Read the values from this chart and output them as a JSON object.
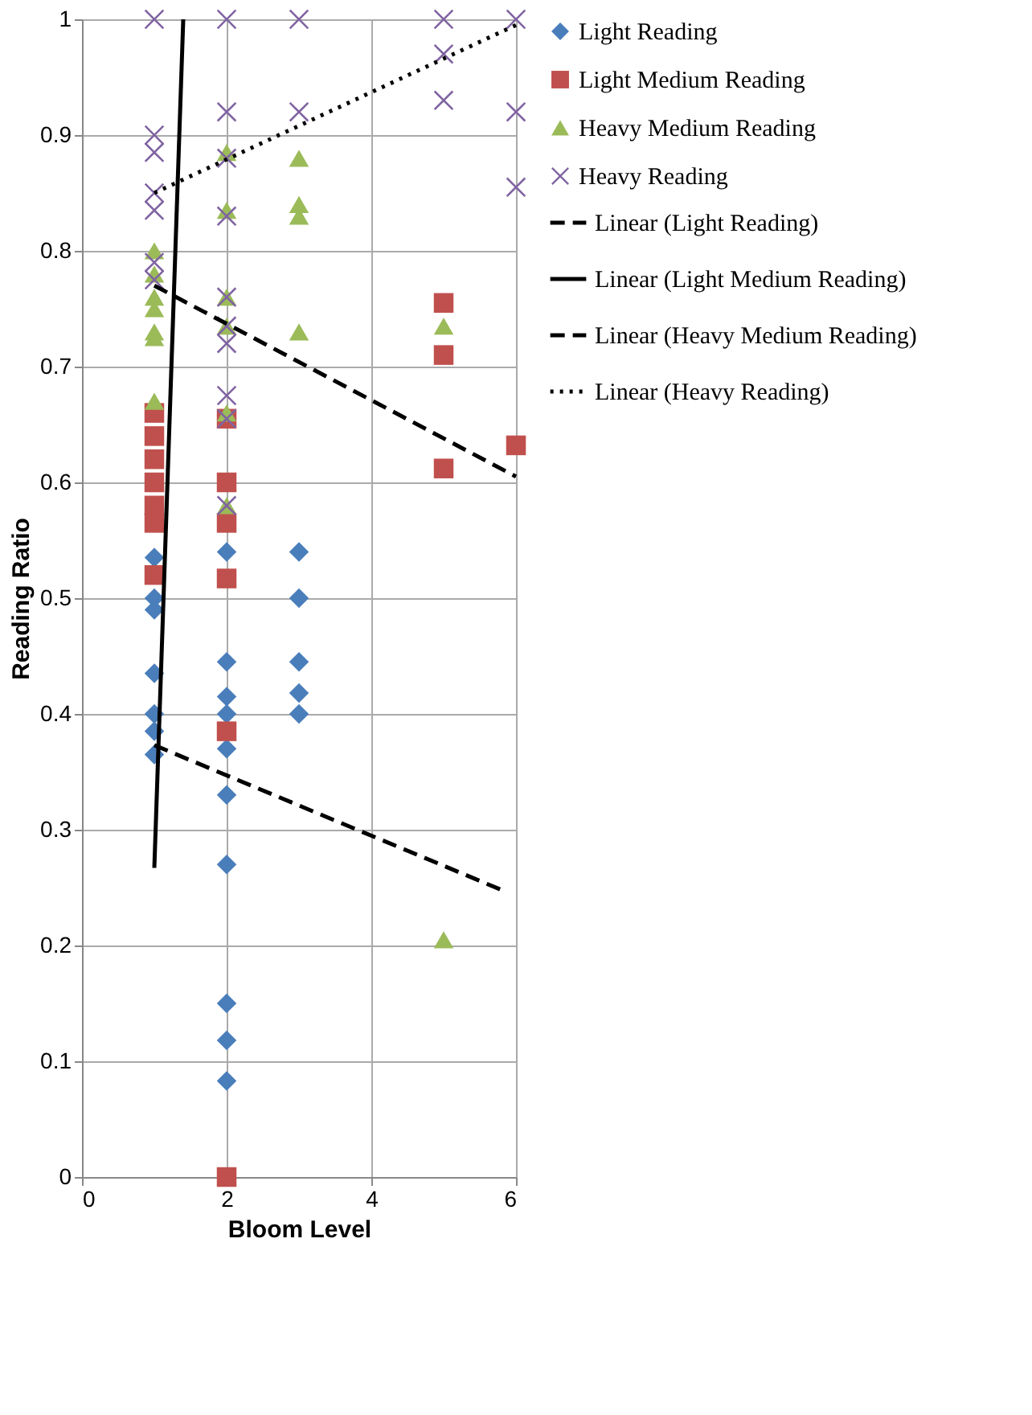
{
  "chart_data": {
    "type": "scatter",
    "xlabel": "Bloom Level",
    "ylabel": "Reading Ratio",
    "xlim": [
      0,
      6
    ],
    "xticks": [
      0,
      2,
      4,
      6
    ],
    "ylim": [
      0,
      1
    ],
    "yticks": [
      0,
      0.1,
      0.2,
      0.3,
      0.4,
      0.5,
      0.6,
      0.7,
      0.8,
      0.9,
      1
    ],
    "grid": true,
    "legend": "right",
    "series": [
      {
        "name": "Light Reading",
        "type": "scatter",
        "marker": "diamond",
        "color": "#4a7ebb",
        "x": [
          1,
          1,
          1,
          1,
          1,
          1,
          1,
          2,
          2,
          2,
          2,
          2,
          2,
          2,
          2,
          2,
          2,
          3,
          3,
          3,
          3,
          3
        ],
        "values": [
          0.535,
          0.5,
          0.49,
          0.435,
          0.4,
          0.385,
          0.365,
          0.54,
          0.445,
          0.415,
          0.4,
          0.37,
          0.33,
          0.27,
          0.15,
          0.118,
          0.083,
          0.54,
          0.5,
          0.445,
          0.418,
          0.4
        ]
      },
      {
        "name": "Light Medium Reading",
        "type": "scatter",
        "marker": "square",
        "color": "#c0504d",
        "x": [
          1,
          1,
          1,
          1,
          1,
          1,
          1,
          2,
          2,
          2,
          2,
          2,
          2,
          5,
          5,
          5,
          6
        ],
        "values": [
          0.66,
          0.64,
          0.62,
          0.6,
          0.58,
          0.565,
          0.52,
          0.655,
          0.6,
          0.565,
          0.517,
          0.385,
          0.0,
          0.755,
          0.71,
          0.612,
          0.632
        ]
      },
      {
        "name": "Heavy Medium Reading",
        "type": "scatter",
        "marker": "triangle",
        "color": "#9bbb59",
        "x": [
          1,
          1,
          1,
          1,
          1,
          1,
          1,
          2,
          2,
          2,
          2,
          2,
          2,
          3,
          3,
          3,
          3,
          5,
          5
        ],
        "values": [
          0.8,
          0.78,
          0.76,
          0.75,
          0.73,
          0.725,
          0.67,
          0.885,
          0.835,
          0.76,
          0.735,
          0.66,
          0.58,
          0.88,
          0.84,
          0.83,
          0.73,
          0.735,
          0.205
        ]
      },
      {
        "name": "Heavy Reading",
        "type": "scatter",
        "marker": "cross",
        "color": "#8064a2",
        "x": [
          1,
          1,
          1,
          1,
          1,
          1,
          1,
          2,
          2,
          2,
          2,
          2,
          2,
          2,
          2,
          2,
          2,
          3,
          3,
          5,
          5,
          5,
          6,
          6,
          6
        ],
        "values": [
          1.0,
          0.9,
          0.885,
          0.85,
          0.835,
          0.79,
          0.775,
          1.0,
          0.92,
          0.88,
          0.83,
          0.76,
          0.735,
          0.72,
          0.675,
          0.655,
          0.58,
          1.0,
          0.92,
          1.0,
          0.97,
          0.93,
          1.0,
          0.92,
          0.855
        ]
      },
      {
        "name": "Linear (Light Reading)",
        "type": "line",
        "line_style": "dashed",
        "color": "#000000",
        "x": [
          1,
          5.8
        ],
        "values": [
          0.373,
          0.248
        ]
      },
      {
        "name": "Linear (Light Medium Reading)",
        "type": "line",
        "line_style": "solid",
        "color": "#000000",
        "x": [
          1,
          1.4
        ],
        "values": [
          0.267,
          1.0
        ]
      },
      {
        "name": "Linear (Heavy Medium Reading)",
        "type": "line",
        "line_style": "dashed",
        "color": "#000000",
        "x": [
          1,
          6
        ],
        "values": [
          0.77,
          0.605
        ]
      },
      {
        "name": "Linear (Heavy Reading)",
        "type": "line",
        "line_style": "dotted",
        "color": "#000000",
        "x": [
          1,
          6
        ],
        "values": [
          0.85,
          0.995
        ]
      }
    ]
  }
}
